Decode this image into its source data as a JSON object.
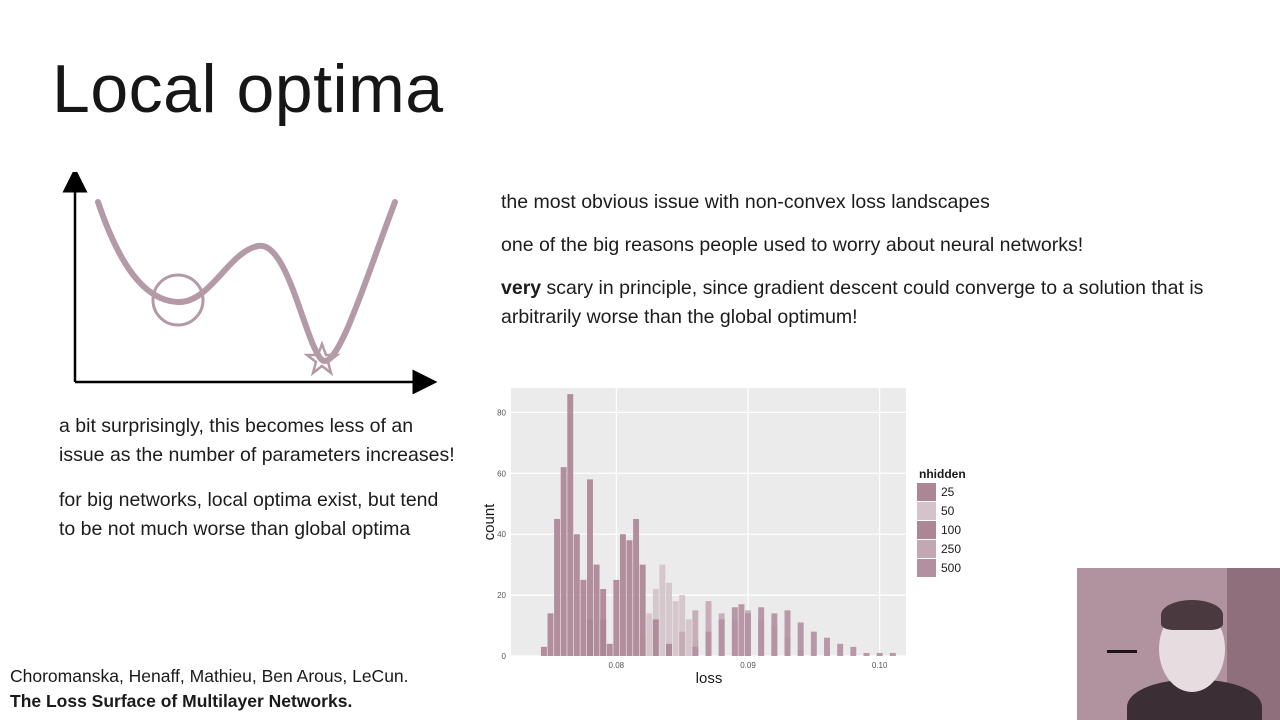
{
  "slide": {
    "title": "Local optima",
    "right_bullets": [
      "the most obvious issue with non-convex loss landscapes",
      "one of the big reasons people used to worry about neural networks!"
    ],
    "scary_bold": "very",
    "scary_rest": " scary in principle, since gradient descent could converge to a solution that is arbitrarily worse than the global optimum!",
    "left_bullets": [
      "a bit surprisingly, this becomes less of an issue as the number of parameters increases!",
      "for big networks, local optima exist, but tend to be not much worse than global optima"
    ],
    "citation": {
      "authors": "Choromanska, Henaff, Mathieu, Ben Arous, LeCun.",
      "title": "The Loss Surface of Multilayer Networks."
    }
  },
  "colors": {
    "curve": "#b39aa6",
    "bar": "#ad8696",
    "panel_bg": "#ebebeb",
    "grid": "#ffffff"
  },
  "chart_data": {
    "type": "bar",
    "xlabel": "loss",
    "ylabel": "count",
    "legend_title": "nhidden",
    "legend_position": "right",
    "xlim": [
      0.072,
      0.102
    ],
    "ylim": [
      0,
      88
    ],
    "x_ticks": [
      0.08,
      0.09,
      0.1
    ],
    "x_tick_labels": [
      "0.08",
      "0.09",
      "0.10"
    ],
    "y_ticks": [
      0,
      20,
      40,
      60,
      80
    ],
    "y_tick_labels": [
      "0",
      "20",
      "40",
      "60",
      "80"
    ],
    "grid": true,
    "series": [
      {
        "name": "25",
        "color": "#ad8696",
        "x": [
          0.0745,
          0.075,
          0.0755,
          0.076,
          0.0765,
          0.077,
          0.0775,
          0.078,
          0.0785,
          0.079,
          0.0795
        ],
        "values": [
          3,
          14,
          45,
          62,
          86,
          40,
          25,
          58,
          30,
          12,
          4
        ]
      },
      {
        "name": "50",
        "color": "#d4c3ca",
        "x": [
          0.082,
          0.0825,
          0.083,
          0.0835,
          0.084,
          0.0845,
          0.085,
          0.0855,
          0.086
        ],
        "values": [
          6,
          14,
          22,
          30,
          24,
          18,
          20,
          12,
          5
        ]
      },
      {
        "name": "100",
        "color": "#ad8696",
        "x": [
          0.078,
          0.079,
          0.08,
          0.0805,
          0.081,
          0.0815,
          0.082,
          0.083,
          0.084
        ],
        "values": [
          12,
          22,
          25,
          40,
          38,
          45,
          30,
          12,
          4
        ]
      },
      {
        "name": "250",
        "color": "#c3a8b4",
        "x": [
          0.085,
          0.086,
          0.087,
          0.088,
          0.089,
          0.09,
          0.091,
          0.092,
          0.093,
          0.094
        ],
        "values": [
          8,
          15,
          18,
          14,
          12,
          15,
          12,
          10,
          6,
          2
        ]
      },
      {
        "name": "500",
        "color": "#b3909f",
        "x": [
          0.086,
          0.087,
          0.088,
          0.089,
          0.0895,
          0.09,
          0.091,
          0.092,
          0.093,
          0.094,
          0.095,
          0.096,
          0.097,
          0.098,
          0.099,
          0.1,
          0.101
        ],
        "values": [
          3,
          8,
          12,
          16,
          17,
          14,
          16,
          14,
          15,
          11,
          8,
          6,
          4,
          3,
          1,
          1,
          1
        ]
      }
    ]
  }
}
